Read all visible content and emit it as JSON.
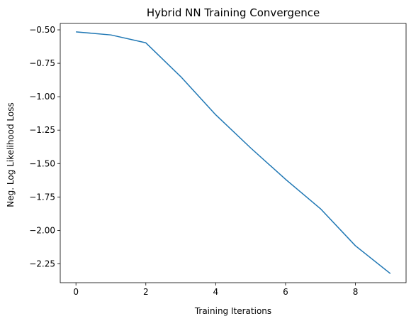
{
  "chart_data": {
    "type": "line",
    "title": "Hybrid NN Training Convergence",
    "xlabel": "Training Iterations",
    "ylabel": "Neg. Log Likelihood Loss",
    "xlim": [
      -0.45,
      9.45
    ],
    "ylim": [
      -2.391,
      -0.452
    ],
    "xticks": [
      0,
      2,
      4,
      6,
      8
    ],
    "xtick_labels": [
      "0",
      "2",
      "4",
      "6",
      "8"
    ],
    "yticks": [
      -0.5,
      -0.75,
      -1.0,
      -1.25,
      -1.5,
      -1.75,
      -2.0,
      -2.25
    ],
    "ytick_labels": [
      "−0.50",
      "−0.75",
      "−1.00",
      "−1.25",
      "−1.50",
      "−1.75",
      "−2.00",
      "−2.25"
    ],
    "grid": false,
    "series": [
      {
        "color": "#1f77b4",
        "x": [
          0,
          1,
          2,
          3,
          4,
          5,
          6,
          7,
          8,
          9
        ],
        "y": [
          -0.515,
          -0.538,
          -0.597,
          -0.85,
          -1.135,
          -1.383,
          -1.618,
          -1.838,
          -2.115,
          -2.323
        ]
      }
    ]
  }
}
